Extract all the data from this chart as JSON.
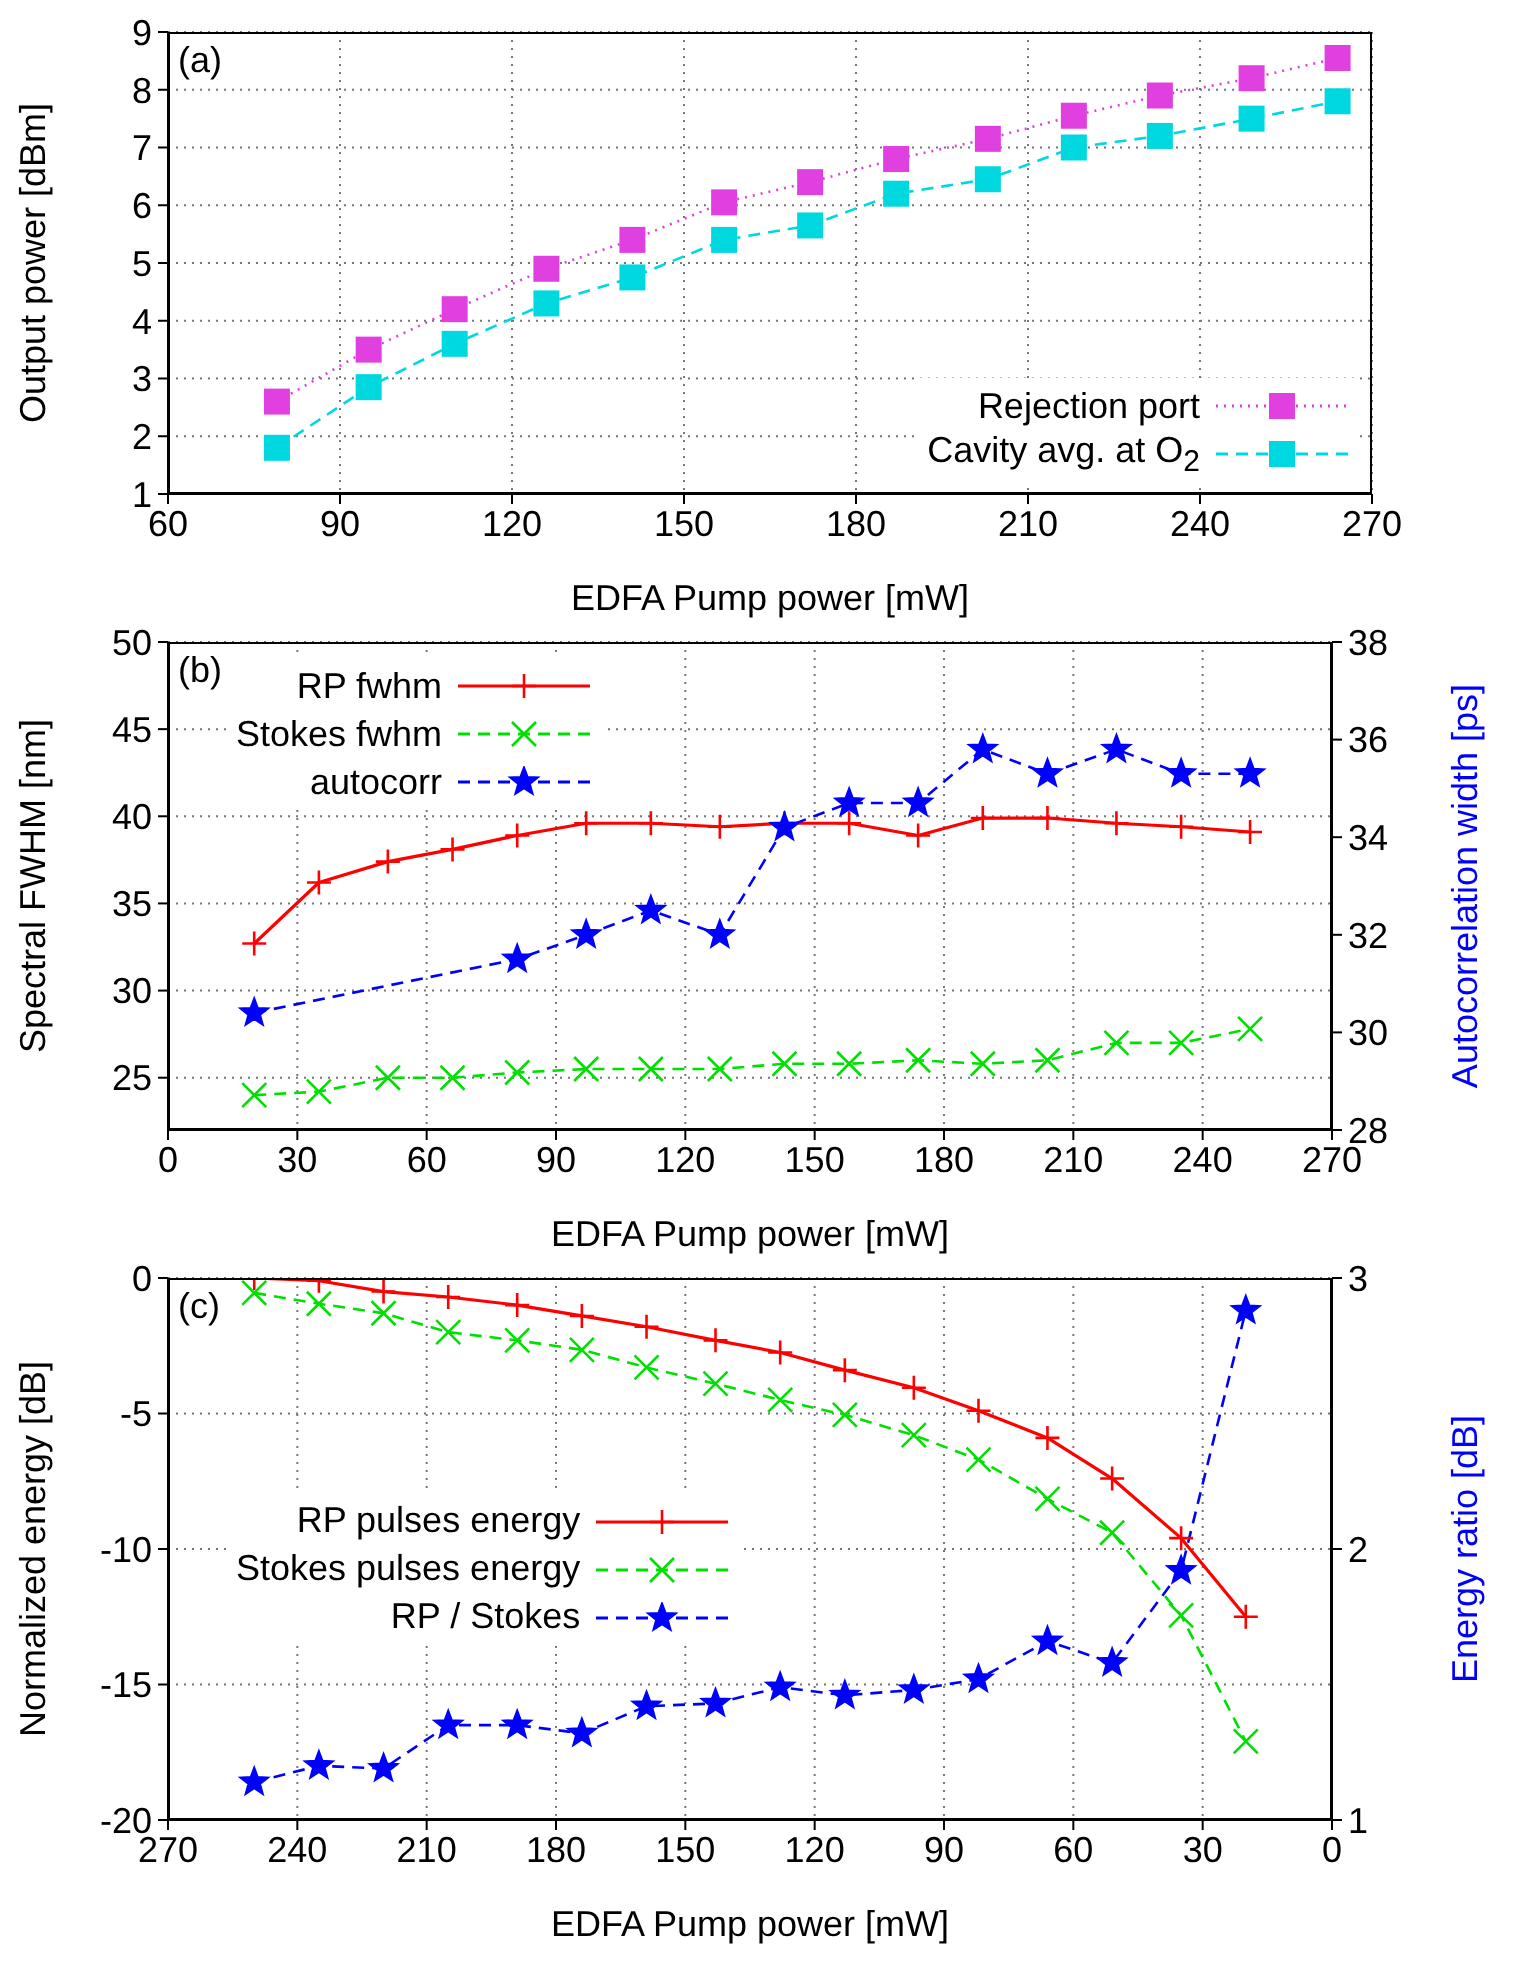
{
  "chart_data": [
    {
      "type": "line",
      "annotations": [
        "(a)"
      ],
      "xlabel": "EDFA Pump power [mW]",
      "ylabel": "Output power [dBm]",
      "xlim": [
        60,
        270
      ],
      "xticks": [
        60,
        90,
        120,
        150,
        180,
        210,
        240,
        270
      ],
      "ylim": [
        1,
        9
      ],
      "yticks": [
        1,
        2,
        3,
        4,
        5,
        6,
        7,
        8,
        9
      ],
      "grid": true,
      "legend": "bottom right",
      "x": [
        79,
        95,
        110,
        126,
        141,
        157,
        172,
        187,
        203,
        218,
        233,
        249,
        264
      ],
      "series": [
        {
          "name": "Rejection port",
          "color": "#e040e0",
          "marker": "square",
          "line_style": "dotted",
          "values": [
            2.6,
            3.5,
            4.2,
            4.9,
            5.4,
            6.05,
            6.4,
            6.8,
            7.15,
            7.55,
            7.9,
            8.2,
            8.55
          ]
        },
        {
          "name": "Cavity avg. at O$_{2}$",
          "color": "#00d8e0",
          "marker": "square",
          "line_style": "dashed",
          "values": [
            1.8,
            2.85,
            3.6,
            4.3,
            4.75,
            5.4,
            5.65,
            6.2,
            6.45,
            7.0,
            7.2,
            7.5,
            7.8
          ]
        }
      ]
    },
    {
      "type": "line",
      "annotations": [
        "(b)"
      ],
      "xlabel": "EDFA Pump power [mW]",
      "ylabel": "Spectral FWHM [nm]",
      "y2label": "Autocorrelation width [ps]",
      "xlim": [
        0,
        270
      ],
      "xticks": [
        0,
        30,
        60,
        90,
        120,
        150,
        180,
        210,
        240,
        270
      ],
      "ylim": [
        22,
        50
      ],
      "yticks": [
        25,
        30,
        35,
        40,
        45,
        50
      ],
      "y2lim": [
        28,
        38
      ],
      "y2ticks": [
        28,
        30,
        32,
        34,
        36,
        38
      ],
      "grid": true,
      "legend": "top left",
      "x": [
        20,
        35,
        51,
        66,
        81,
        97,
        112,
        128,
        143,
        158,
        174,
        189,
        204,
        220,
        235,
        251
      ],
      "series": [
        {
          "name": "RP fwhm",
          "color": "#ff0000",
          "marker": "plus",
          "line_style": "solid",
          "values": [
            32.7,
            36.2,
            37.4,
            38.1,
            38.9,
            39.6,
            39.6,
            39.4,
            39.6,
            39.6,
            38.9,
            39.9,
            39.9,
            39.6,
            39.4,
            39.1
          ]
        },
        {
          "name": "Stokes fwhm",
          "color": "#00e000",
          "marker": "cross",
          "line_style": "dashed",
          "values": [
            24.0,
            24.2,
            25.0,
            25.0,
            25.3,
            25.5,
            25.5,
            25.5,
            25.8,
            25.8,
            26.0,
            25.8,
            26.0,
            27.0,
            27.0,
            27.8
          ]
        },
        {
          "name": "autocorr",
          "color": "#0000ff",
          "marker": "star",
          "line_style": "dashed",
          "axis": "y2",
          "x": [
            20,
            81,
            97,
            112,
            128,
            143,
            158,
            174,
            189,
            204,
            220,
            235,
            251
          ],
          "values": [
            30.4,
            31.5,
            32.0,
            32.5,
            32.0,
            34.2,
            34.7,
            34.7,
            35.8,
            35.3,
            35.8,
            35.3,
            35.3
          ]
        }
      ]
    },
    {
      "type": "line",
      "annotations": [
        "(c)"
      ],
      "xlabel": "EDFA Pump power [mW]",
      "ylabel": "Normalized energy [dB]",
      "y2label": "Energy ratio [dB]",
      "xlim": [
        270,
        0
      ],
      "xticks": [
        270,
        240,
        210,
        180,
        150,
        120,
        90,
        60,
        30,
        0
      ],
      "ylim": [
        -20,
        0
      ],
      "yticks": [
        -20,
        -15,
        -10,
        -5,
        0
      ],
      "y2lim": [
        1,
        3
      ],
      "y2ticks": [
        1,
        2,
        3
      ],
      "grid": true,
      "legend": "left",
      "x": [
        250,
        235,
        220,
        205,
        189,
        174,
        159,
        143,
        128,
        113,
        97,
        82,
        66,
        51,
        35,
        20
      ],
      "series": [
        {
          "name": "RP pulses energy",
          "color": "#ff0000",
          "marker": "plus",
          "line_style": "solid",
          "values": [
            0,
            -0.1,
            -0.5,
            -0.7,
            -1.0,
            -1.4,
            -1.8,
            -2.3,
            -2.75,
            -3.4,
            -4.05,
            -4.9,
            -5.9,
            -7.4,
            -9.6,
            -12.5
          ]
        },
        {
          "name": "Stokes pulses energy",
          "color": "#00e000",
          "marker": "cross",
          "line_style": "dashed",
          "values": [
            -0.55,
            -0.95,
            -1.3,
            -2.0,
            -2.3,
            -2.65,
            -3.3,
            -3.9,
            -4.5,
            -5.05,
            -5.8,
            -6.7,
            -8.15,
            -9.4,
            -12.45,
            -17.1
          ]
        },
        {
          "name": "RP / Stokes",
          "color": "#0000ff",
          "marker": "star",
          "line_style": "dashed",
          "axis": "y2",
          "values": [
            1.14,
            1.2,
            1.19,
            1.35,
            1.35,
            1.32,
            1.42,
            1.43,
            1.49,
            1.46,
            1.48,
            1.52,
            1.66,
            1.58,
            1.92,
            2.88
          ]
        }
      ]
    }
  ]
}
